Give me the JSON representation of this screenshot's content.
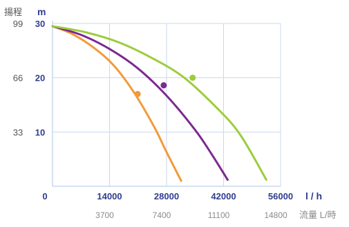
{
  "colors": {
    "axis_blue": "#2e3d8f",
    "grid": "#c9d9ee",
    "grey_text": "#8a8a8a",
    "series_orange": "#f29a3a",
    "series_purple": "#7b2a8f",
    "series_green": "#9ccc3c"
  },
  "chart_data": {
    "type": "line",
    "ylabel": "揚程",
    "yunit": "m",
    "xunit": "l / h",
    "xlabel_secondary": "流量 L/時",
    "xlim": [
      0,
      56000
    ],
    "ylim": [
      0,
      30
    ],
    "x_ticks": [
      {
        "value": 0,
        "label": "0"
      },
      {
        "value": 14000,
        "label": "14000"
      },
      {
        "value": 28000,
        "label": "28000"
      },
      {
        "value": 42000,
        "label": "42000"
      },
      {
        "value": 56000,
        "label": "56000"
      }
    ],
    "x_ticks_secondary": [
      {
        "value": 14000,
        "label": "3700"
      },
      {
        "value": 28000,
        "label": "7400"
      },
      {
        "value": 42000,
        "label": "11100"
      },
      {
        "value": 56000,
        "label": "14800"
      }
    ],
    "y_ticks": [
      {
        "value": 10,
        "label": "10"
      },
      {
        "value": 20,
        "label": "20"
      },
      {
        "value": 30,
        "label": "30"
      }
    ],
    "y_ticks_secondary": [
      {
        "value": 10,
        "label": "33"
      },
      {
        "value": 20,
        "label": "66"
      },
      {
        "value": 30,
        "label": "99"
      }
    ],
    "grid": true,
    "series": [
      {
        "color": "#f29a3a",
        "x": [
          0,
          5000,
          10000,
          15000,
          20000,
          25000,
          28000,
          31600
        ],
        "y": [
          29.5,
          28.0,
          25.6,
          22.3,
          17.3,
          10.9,
          6.3,
          1.0
        ],
        "marker": {
          "x": 20900,
          "y": 17.0
        }
      },
      {
        "color": "#7b2a8f",
        "x": [
          0,
          7000,
          14000,
          21000,
          28000,
          35000,
          39000,
          43000
        ],
        "y": [
          29.5,
          27.9,
          25.3,
          21.7,
          16.7,
          10.4,
          6.0,
          1.2
        ],
        "marker": {
          "x": 27300,
          "y": 18.6
        }
      },
      {
        "color": "#9ccc3c",
        "x": [
          0,
          8000,
          16000,
          24000,
          32000,
          40000,
          46000,
          52500
        ],
        "y": [
          29.5,
          28.4,
          26.6,
          23.8,
          20.2,
          14.7,
          9.6,
          1.2
        ],
        "marker": {
          "x": 34400,
          "y": 20.0
        }
      }
    ]
  }
}
